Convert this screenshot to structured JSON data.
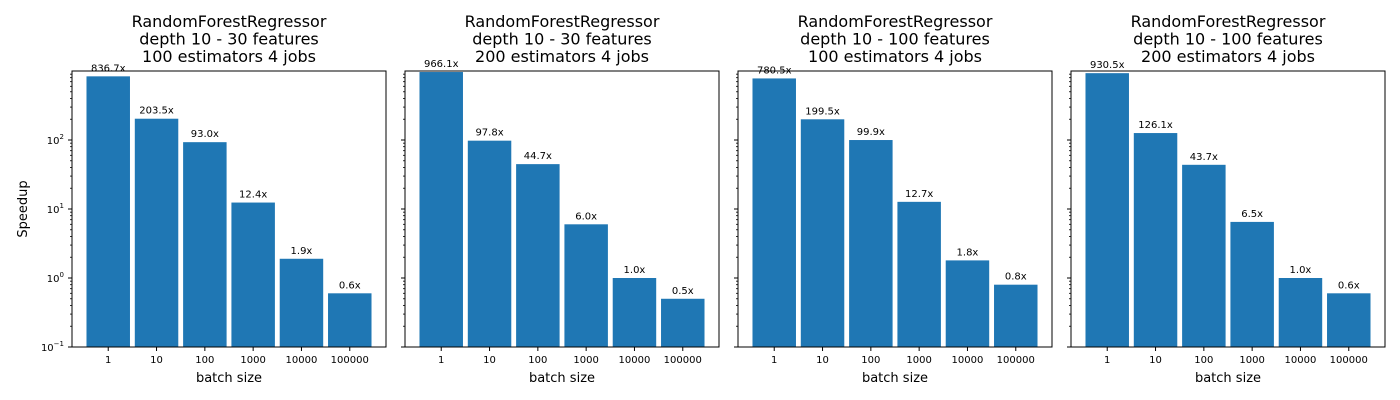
{
  "chart_data": [
    {
      "type": "bar",
      "title_lines": [
        "RandomForestRegressor",
        "depth 10 - 30 features",
        "100 estimators 4 jobs"
      ],
      "xlabel": "batch size",
      "ylabel": "Speedup",
      "yscale": "log",
      "ylim": [
        0.1,
        1000
      ],
      "categories": [
        "1",
        "10",
        "100",
        "1000",
        "10000",
        "100000"
      ],
      "values": [
        836.7,
        203.5,
        93.0,
        12.4,
        1.9,
        0.6
      ],
      "bar_labels": [
        "836.7x",
        "203.5x",
        "93.0x",
        "12.4x",
        "1.9x",
        "0.6x"
      ]
    },
    {
      "type": "bar",
      "title_lines": [
        "RandomForestRegressor",
        "depth 10 - 30 features",
        "200 estimators 4 jobs"
      ],
      "xlabel": "batch size",
      "ylabel": "",
      "yscale": "log",
      "ylim": [
        0.1,
        1000
      ],
      "categories": [
        "1",
        "10",
        "100",
        "1000",
        "10000",
        "100000"
      ],
      "values": [
        966.1,
        97.8,
        44.7,
        6.0,
        1.0,
        0.5
      ],
      "bar_labels": [
        "966.1x",
        "97.8x",
        "44.7x",
        "6.0x",
        "1.0x",
        "0.5x"
      ]
    },
    {
      "type": "bar",
      "title_lines": [
        "RandomForestRegressor",
        "depth 10 - 100 features",
        "100 estimators 4 jobs"
      ],
      "xlabel": "batch size",
      "ylabel": "",
      "yscale": "log",
      "ylim": [
        0.1,
        1000
      ],
      "categories": [
        "1",
        "10",
        "100",
        "1000",
        "10000",
        "100000"
      ],
      "values": [
        780.5,
        199.5,
        99.9,
        12.7,
        1.8,
        0.8
      ],
      "bar_labels": [
        "780.5x",
        "199.5x",
        "99.9x",
        "12.7x",
        "1.8x",
        "0.8x"
      ]
    },
    {
      "type": "bar",
      "title_lines": [
        "RandomForestRegressor",
        "depth 10 - 100 features",
        "200 estimators 4 jobs"
      ],
      "xlabel": "batch size",
      "ylabel": "",
      "yscale": "log",
      "ylim": [
        0.1,
        1000
      ],
      "categories": [
        "1",
        "10",
        "100",
        "1000",
        "10000",
        "100000"
      ],
      "values": [
        930.5,
        126.1,
        43.7,
        6.5,
        1.0,
        0.6
      ],
      "bar_labels": [
        "930.5x",
        "126.1x",
        "43.7x",
        "6.5x",
        "1.0x",
        "0.6x"
      ]
    }
  ],
  "y_ticks": [
    {
      "value": 0.1,
      "base": "10",
      "exp": "−1"
    },
    {
      "value": 1,
      "base": "10",
      "exp": "0"
    },
    {
      "value": 10,
      "base": "10",
      "exp": "1"
    },
    {
      "value": 100,
      "base": "10",
      "exp": "2"
    }
  ],
  "colors": {
    "bar": "#1f77b4",
    "axis": "#000000"
  },
  "grid": false
}
